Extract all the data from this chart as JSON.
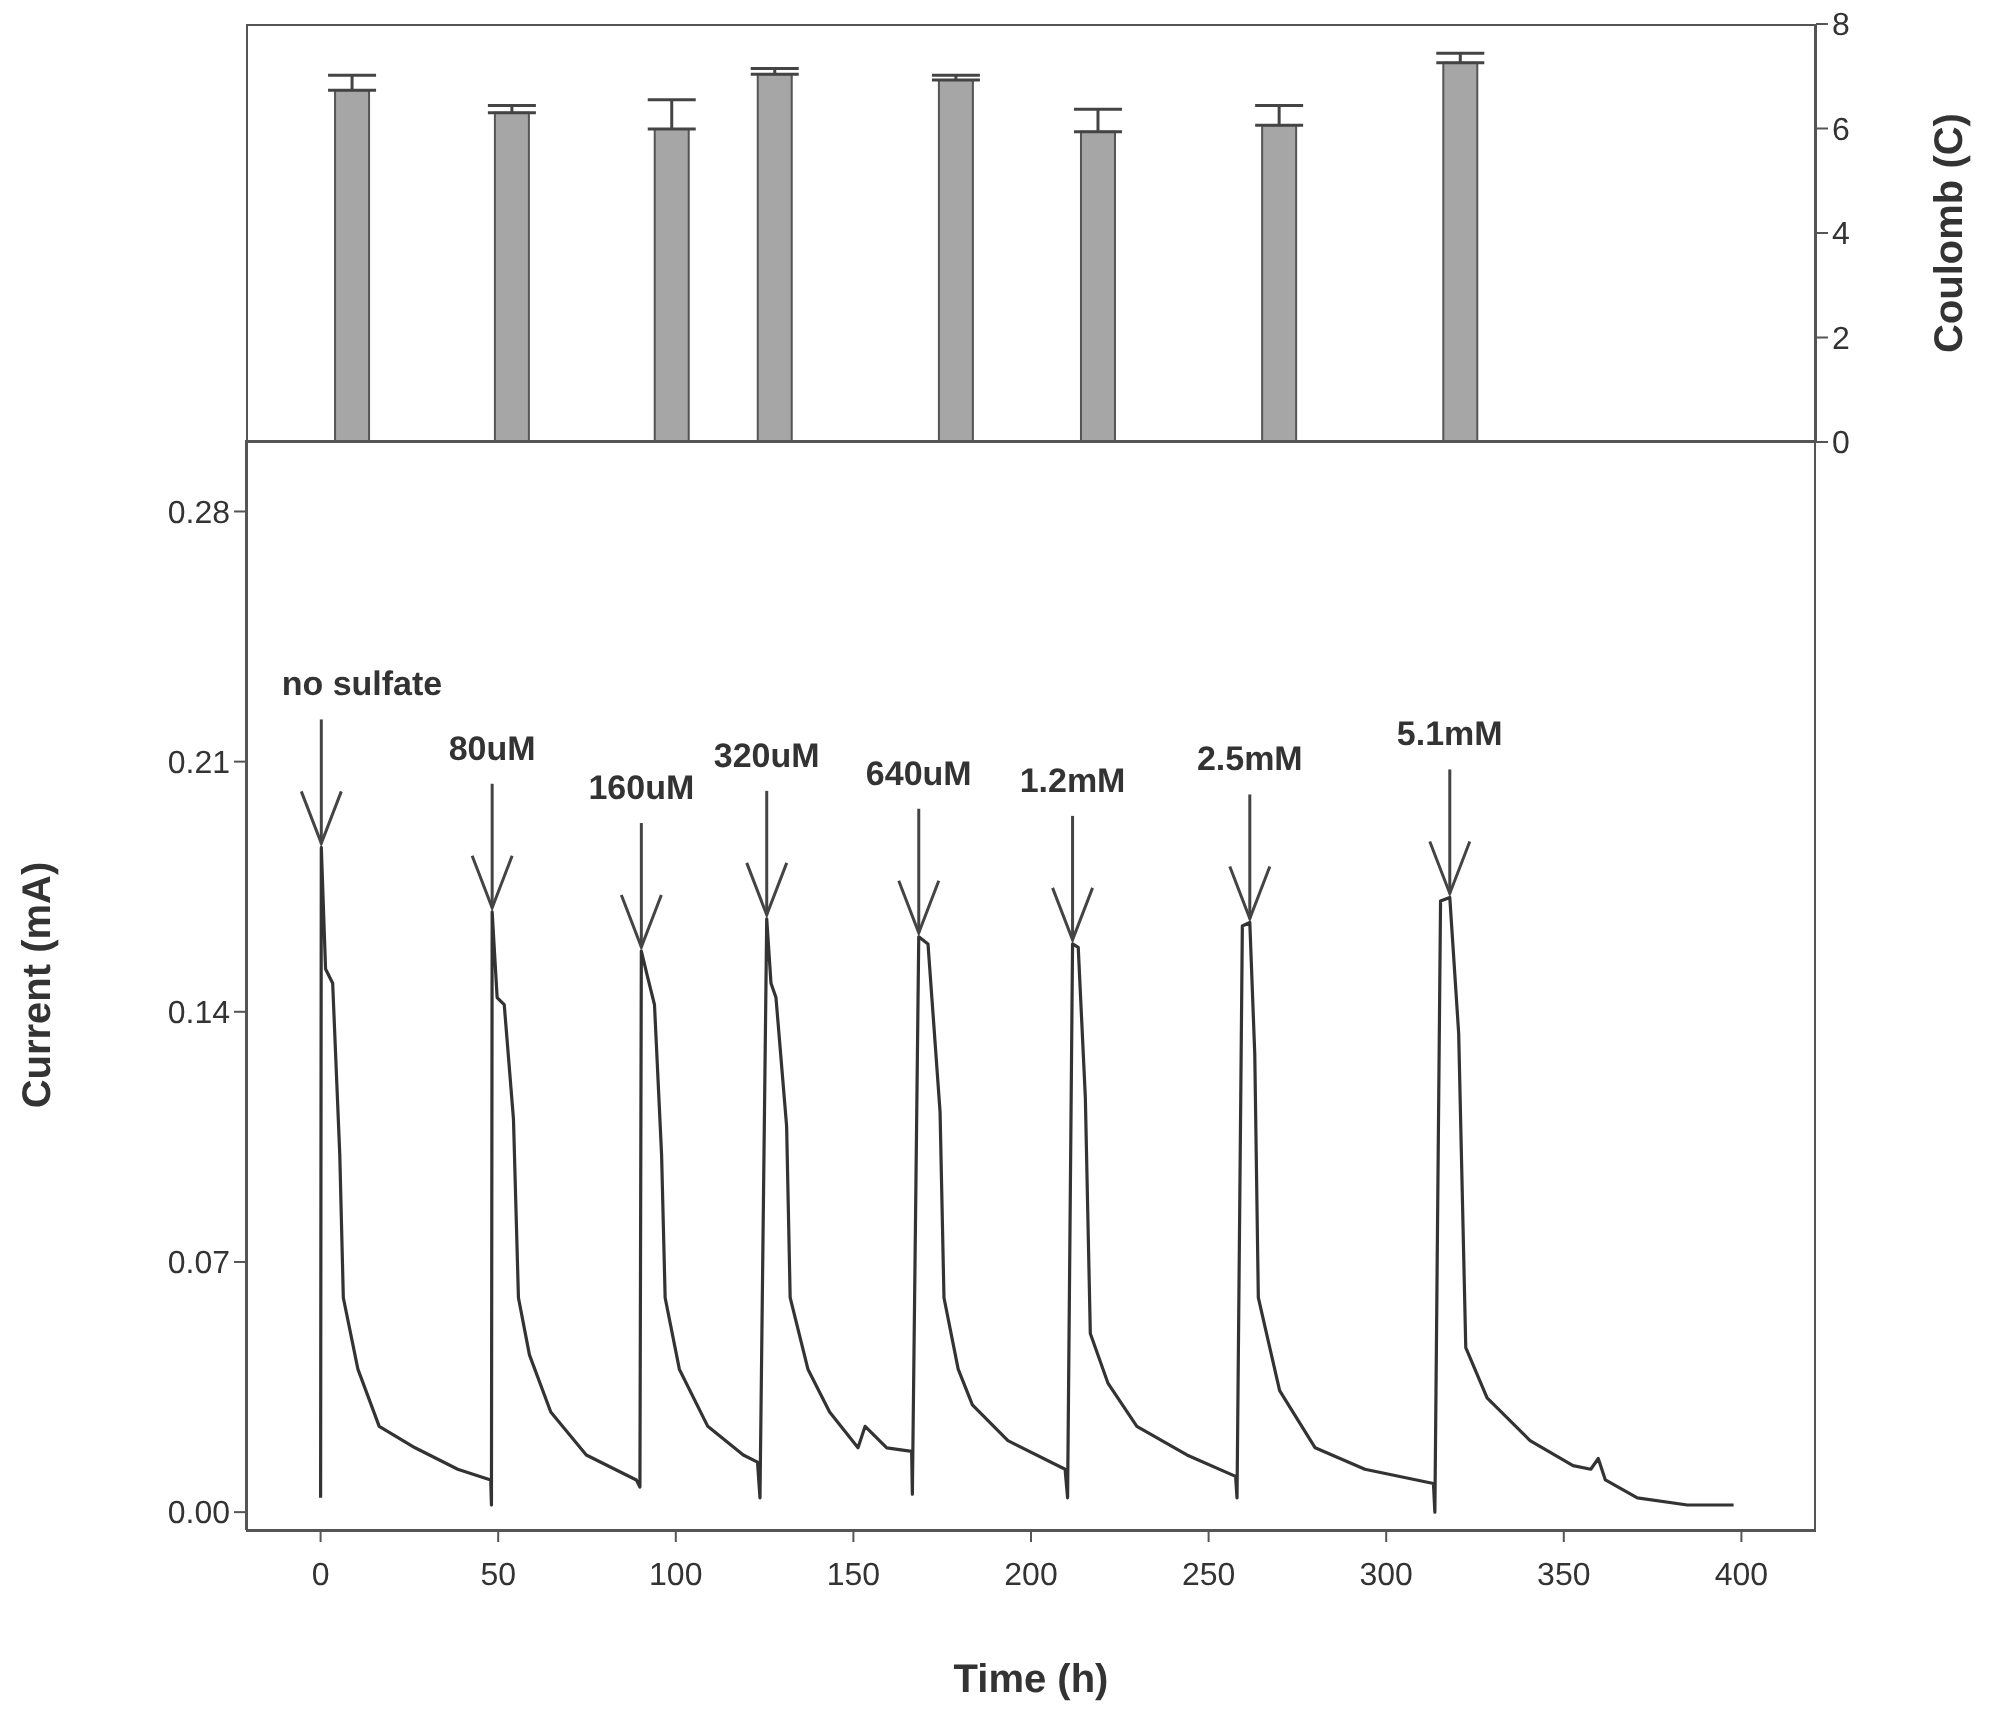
{
  "chart_data": [
    {
      "type": "bar",
      "ylabel": "Coulomb (C)",
      "x": [
        9,
        54,
        99,
        128,
        179,
        219,
        270,
        321
      ],
      "values": [
        6.73,
        6.3,
        5.99,
        7.04,
        6.93,
        5.94,
        6.06,
        7.26
      ],
      "errors": [
        [
          6.73,
          7.02
        ],
        [
          6.3,
          6.44
        ],
        [
          5.99,
          6.55
        ],
        [
          7.04,
          7.15
        ],
        [
          6.93,
          7.02
        ],
        [
          5.94,
          6.37
        ],
        [
          6.06,
          6.44
        ],
        [
          7.26,
          7.44
        ]
      ],
      "color": "#a6a6a6",
      "xlim": [
        -21,
        421
      ],
      "ylim": [
        0,
        8
      ],
      "yticks": [
        0,
        2,
        4,
        6,
        8
      ],
      "tick_labels": "y"
    },
    {
      "type": "line",
      "xlabel": "Time (h)",
      "ylabel": "Current (mA)",
      "color": "#333333",
      "x": [
        0,
        0.2,
        1.4,
        3.4,
        5.4,
        6.4,
        10.5,
        16.5,
        26.6,
        38.6,
        47.9,
        48.1,
        48.3,
        49.7,
        51.7,
        54.3,
        55.7,
        58.8,
        64.8,
        74.8,
        88.9,
        89.9,
        90.3,
        92,
        94,
        96,
        97,
        101,
        109,
        119,
        123,
        123.7,
        125.6,
        126.8,
        128.2,
        131.2,
        132.2,
        137.2,
        143.3,
        151.3,
        153.3,
        159.4,
        166.4,
        166.6,
        168.4,
        171,
        174.4,
        175.5,
        179.5,
        183.5,
        193.5,
        209.6,
        210.3,
        211.7,
        213.3,
        215.3,
        216.7,
        221.7,
        229.8,
        243.9,
        257.6,
        258,
        259.5,
        261.6,
        263,
        264,
        270,
        280,
        294,
        313.3,
        313.7,
        315.3,
        317.9,
        320.4,
        322.4,
        328.4,
        340.5,
        352.6,
        357.6,
        359.7,
        361.7,
        370.7,
        384.8,
        397.8
      ],
      "values": [
        0.004,
        0.186,
        0.152,
        0.148,
        0.1,
        0.06,
        0.04,
        0.024,
        0.018,
        0.012,
        0.009,
        0.002,
        0.168,
        0.144,
        0.142,
        0.11,
        0.06,
        0.044,
        0.028,
        0.016,
        0.009,
        0.007,
        0.157,
        0.15,
        0.142,
        0.1,
        0.06,
        0.04,
        0.024,
        0.016,
        0.014,
        0.004,
        0.166,
        0.148,
        0.144,
        0.108,
        0.06,
        0.04,
        0.028,
        0.018,
        0.024,
        0.018,
        0.017,
        0.005,
        0.161,
        0.159,
        0.112,
        0.06,
        0.04,
        0.03,
        0.02,
        0.012,
        0.004,
        0.159,
        0.158,
        0.116,
        0.05,
        0.036,
        0.024,
        0.016,
        0.01,
        0.004,
        0.164,
        0.165,
        0.128,
        0.06,
        0.034,
        0.018,
        0.012,
        0.008,
        0,
        0.171,
        0.172,
        0.134,
        0.046,
        0.032,
        0.02,
        0.013,
        0.012,
        0.015,
        0.009,
        0.004,
        0.002,
        0.002
      ],
      "xlim": [
        -21,
        421
      ],
      "xticks": [
        0,
        50,
        100,
        150,
        200,
        250,
        300,
        350,
        400
      ],
      "ylim": [
        -0.005,
        0.3
      ],
      "yticks": [
        {
          "value": 0,
          "label": "0.00"
        },
        0.07,
        0.14,
        0.21,
        0.28
      ],
      "annotations": [
        {
          "text": "no sulfate",
          "x": 0.2,
          "y": 0.186
        },
        {
          "text": "80uM",
          "x": 48.3,
          "y": 0.168
        },
        {
          "text": "160uM",
          "x": 90.3,
          "y": 0.157
        },
        {
          "text": "320uM",
          "x": 125.6,
          "y": 0.166
        },
        {
          "text": "640uM",
          "x": 168.4,
          "y": 0.161
        },
        {
          "text": "1.2mM",
          "x": 211.7,
          "y": 0.159
        },
        {
          "text": "2.5mM",
          "x": 261.6,
          "y": 0.165
        },
        {
          "text": "5.1mM",
          "x": 317.9,
          "y": 0.172
        }
      ]
    }
  ]
}
